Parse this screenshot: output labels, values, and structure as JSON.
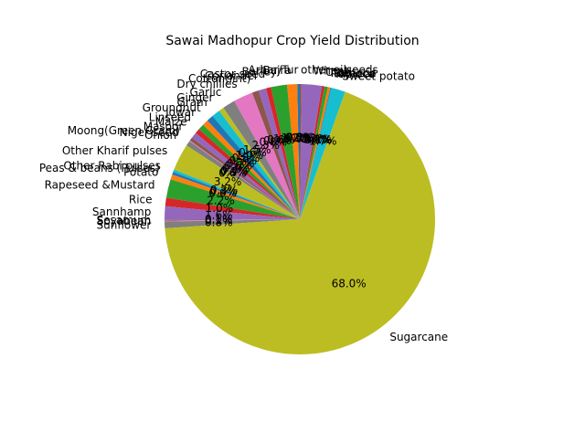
{
  "chart_data": {
    "type": "pie",
    "title": "Sawai Madhopur Crop Yield Distribution",
    "start_angle_deg": 90,
    "direction": "counterclockwise",
    "slices": [
      {
        "label": "Arhar/Tur",
        "value": 0.3,
        "pct_label": "0.3%",
        "color": "#1f77b4"
      },
      {
        "label": "Bajra",
        "value": 1.2,
        "pct_label": "1.2%",
        "color": "#ff7f0e"
      },
      {
        "label": "Barley",
        "value": 1.9,
        "pct_label": "1.9%",
        "color": "#2ca02c"
      },
      {
        "label": "Castor seed",
        "value": 0.6,
        "pct_label": "0.6%",
        "color": "#d62728"
      },
      {
        "label": "Coriander",
        "value": 0.9,
        "pct_label": "0.9%",
        "color": "#9467bd"
      },
      {
        "label": "Cotton(lint)",
        "value": 0.8,
        "pct_label": "0.8%",
        "color": "#8c564b"
      },
      {
        "label": "Dry chillies",
        "value": 2.3,
        "pct_label": "2.3%",
        "color": "#e377c2"
      },
      {
        "label": "Garlic",
        "value": 1.5,
        "pct_label": "1.5%",
        "color": "#7f7f7f"
      },
      {
        "label": "Ginger",
        "value": 0.6,
        "pct_label": "0.6%",
        "color": "#bcbd22"
      },
      {
        "label": "Gram",
        "value": 1.0,
        "pct_label": "1.0%",
        "color": "#17becf"
      },
      {
        "label": "Groundnut",
        "value": 0.8,
        "pct_label": "0.8%",
        "color": "#1f77b4"
      },
      {
        "label": "Jowar",
        "value": 0.7,
        "pct_label": "0.7%",
        "color": "#ff7f0e"
      },
      {
        "label": "Linseed",
        "value": 0.7,
        "pct_label": "0.7%",
        "color": "#2ca02c"
      },
      {
        "label": "Maize",
        "value": 0.6,
        "pct_label": "0.6%",
        "color": "#d62728"
      },
      {
        "label": "Masoor",
        "value": 0.7,
        "pct_label": "0.7%",
        "color": "#9467bd"
      },
      {
        "label": "Moong(Green Gram)",
        "value": 0.4,
        "pct_label": "0.4%",
        "color": "#8c564b"
      },
      {
        "label": "Niger seed",
        "value": 0.1,
        "pct_label": "0.1%",
        "color": "#e377c2"
      },
      {
        "label": "Onion",
        "value": 0.6,
        "pct_label": "0.6%",
        "color": "#7f7f7f"
      },
      {
        "label": "Other Kharif pulses",
        "value": 3.2,
        "pct_label": "3.2%",
        "color": "#bcbd22"
      },
      {
        "label": "Other Rabi pulses",
        "value": 0.3,
        "pct_label": "0.3%",
        "color": "#17becf"
      },
      {
        "label": "Peas & beans (Pulses)",
        "value": 0.3,
        "pct_label": "0.3%",
        "color": "#1f77b4"
      },
      {
        "label": "Potato",
        "value": 0.6,
        "pct_label": "0.6%",
        "color": "#ff7f0e"
      },
      {
        "label": "Rapeseed &Mustard",
        "value": 2.2,
        "pct_label": "2.2%",
        "color": "#2ca02c"
      },
      {
        "label": "Rice",
        "value": 1.0,
        "pct_label": "1.0%",
        "color": "#d62728"
      },
      {
        "label": "Sannhamp",
        "value": 1.6,
        "pct_label": "1.6%",
        "color": "#9467bd"
      },
      {
        "label": "Sesamum",
        "value": 0.1,
        "pct_label": "0.1%",
        "color": "#8c564b"
      },
      {
        "label": "Soyabean",
        "value": 0.1,
        "pct_label": "0.1%",
        "color": "#e377c2"
      },
      {
        "label": "Sunflower",
        "value": 0.8,
        "pct_label": "0.8%",
        "color": "#7f7f7f"
      },
      {
        "label": "Sugarcane",
        "value": 68.0,
        "pct_label": "68.0%",
        "color": "#bcbd22"
      },
      {
        "label": "Sweet potato",
        "value": 1.7,
        "pct_label": "1.7%",
        "color": "#17becf"
      },
      {
        "label": "Tapioca",
        "value": 0.1,
        "pct_label": "0.1%",
        "color": "#1f77b4"
      },
      {
        "label": "Tobacco",
        "value": 0.3,
        "pct_label": "0.3%",
        "color": "#ff7f0e"
      },
      {
        "label": "Turmeric",
        "value": 0.4,
        "pct_label": "0.4%",
        "color": "#2ca02c"
      },
      {
        "label": "Urad",
        "value": 0.3,
        "pct_label": "0.3%",
        "color": "#d62728"
      },
      {
        "label": "Wheat",
        "value": 2.4,
        "pct_label": "2.4%",
        "color": "#9467bd"
      },
      {
        "label": "other oilseeds",
        "value": 0.2,
        "pct_label": "0.2%",
        "color": "#8c564b"
      }
    ]
  }
}
